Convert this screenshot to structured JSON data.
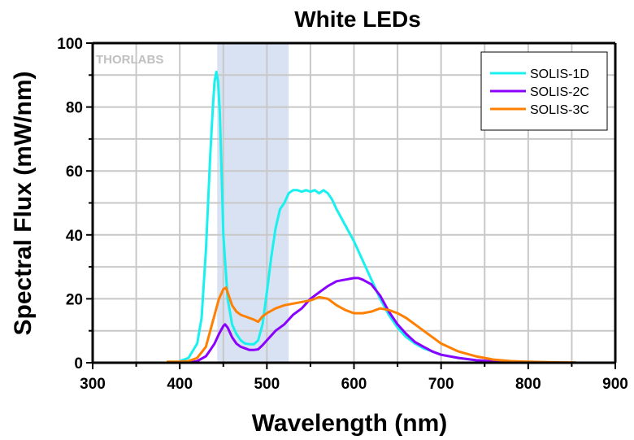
{
  "chart_data": {
    "type": "line",
    "title": "White LEDs",
    "xlabel": "Wavelength (nm)",
    "ylabel": "Spectral Flux (mW/nm)",
    "xlim": [
      300,
      900
    ],
    "ylim": [
      0,
      100
    ],
    "xticks": [
      300,
      400,
      500,
      600,
      700,
      800,
      900
    ],
    "yticks": [
      0,
      20,
      40,
      60,
      80,
      100
    ],
    "x_minor_step": 50,
    "y_minor_step": 10,
    "grid": true,
    "legend_position": "top-right",
    "watermark": "THORLABS",
    "shaded_band": {
      "x_start": 443,
      "x_end": 525,
      "color": "#d9e2f3"
    },
    "series": [
      {
        "name": "SOLIS-1D",
        "color": "#19f0f0",
        "x": [
          400,
          410,
          420,
          425,
          430,
          435,
          438,
          440,
          442,
          444,
          446,
          448,
          450,
          455,
          460,
          465,
          470,
          475,
          480,
          485,
          490,
          495,
          500,
          505,
          510,
          515,
          520,
          525,
          530,
          535,
          540,
          545,
          550,
          555,
          560,
          565,
          570,
          575,
          580,
          590,
          600,
          610,
          620,
          630,
          640,
          650,
          660,
          670,
          680,
          690,
          700,
          720,
          740,
          760,
          780,
          800
        ],
        "y": [
          0.5,
          1.5,
          6,
          14,
          35,
          65,
          80,
          88,
          91,
          88,
          78,
          60,
          40,
          20,
          12,
          9,
          7,
          6,
          5.8,
          5.8,
          7,
          12,
          22,
          33,
          42,
          48,
          50,
          53,
          54,
          54,
          53.5,
          54,
          53.5,
          54,
          53,
          54,
          53,
          51,
          48,
          43,
          38,
          32,
          26,
          20,
          15,
          11,
          8,
          6,
          4.5,
          3.5,
          2.5,
          1.5,
          0.8,
          0.3,
          0.1,
          0
        ]
      },
      {
        "name": "SOLIS-2C",
        "color": "#8a00ff",
        "x": [
          410,
          420,
          430,
          435,
          440,
          445,
          450,
          452,
          455,
          460,
          465,
          470,
          475,
          480,
          485,
          490,
          495,
          500,
          510,
          520,
          530,
          540,
          550,
          560,
          570,
          580,
          590,
          600,
          605,
          610,
          620,
          630,
          640,
          650,
          660,
          670,
          680,
          690,
          700,
          720,
          740,
          760,
          780,
          800
        ],
        "y": [
          0,
          0.5,
          2,
          4,
          6,
          9,
          11.5,
          12,
          11,
          8,
          6,
          5,
          4.5,
          4,
          4,
          4.2,
          5.5,
          7,
          10,
          12,
          15,
          17,
          20,
          22,
          24,
          25.5,
          26,
          26.5,
          26.5,
          26,
          24.5,
          21,
          16,
          12,
          9,
          6.5,
          5,
          3.5,
          2.5,
          1.5,
          0.8,
          0.4,
          0.2,
          0
        ]
      },
      {
        "name": "SOLIS-3C",
        "color": "#ff8000",
        "x": [
          385,
          400,
          410,
          420,
          430,
          435,
          440,
          445,
          450,
          453,
          455,
          460,
          465,
          470,
          475,
          480,
          485,
          490,
          495,
          500,
          510,
          520,
          530,
          540,
          550,
          560,
          570,
          580,
          590,
          600,
          610,
          620,
          630,
          640,
          650,
          660,
          670,
          680,
          690,
          700,
          720,
          740,
          760,
          780,
          800,
          820,
          840,
          855
        ],
        "y": [
          0.3,
          0.3,
          0.5,
          1.5,
          5,
          10,
          15,
          20,
          23,
          23.5,
          22,
          18,
          16,
          15,
          14.5,
          14,
          13.5,
          12.8,
          14.5,
          15.5,
          17,
          18,
          18.5,
          19,
          19.5,
          20.5,
          20,
          18,
          16.5,
          15.5,
          15.5,
          16,
          17,
          16.5,
          15.5,
          14,
          12,
          10,
          8,
          6,
          3.5,
          2,
          1,
          0.5,
          0.3,
          0.2,
          0.1,
          0.1
        ]
      }
    ]
  }
}
